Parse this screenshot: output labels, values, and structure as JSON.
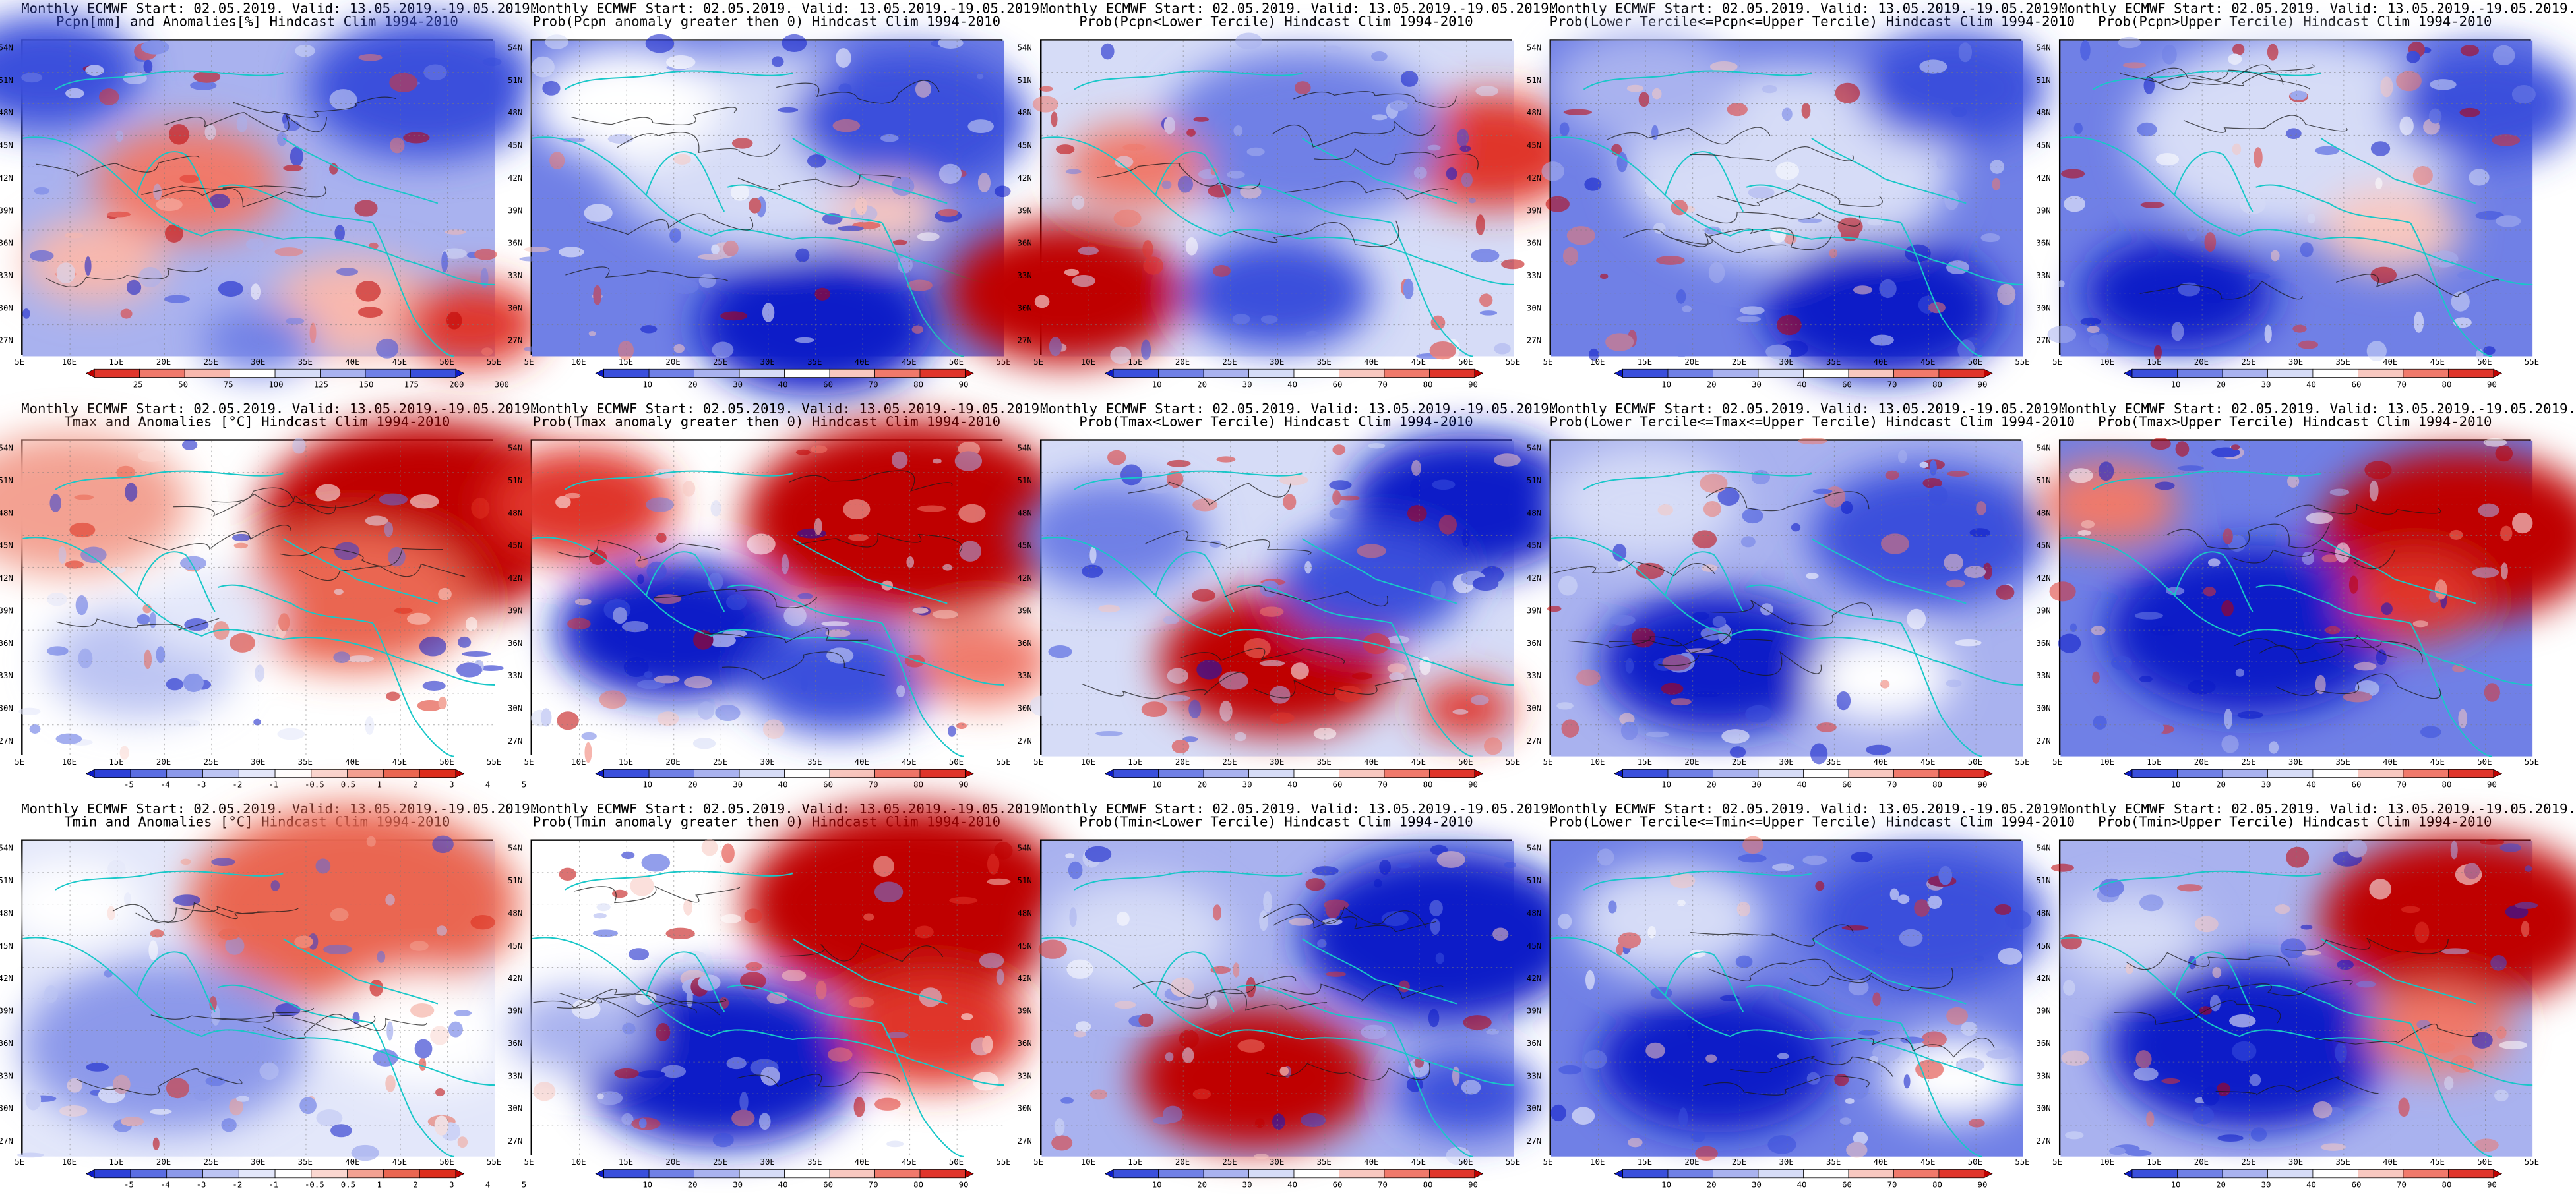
{
  "titles": [
    [
      "Monthly ECMWF Start: 02.05.2019. Valid: 13.05.2019.-19.05.2019.",
      "Pcpn[mm] and Anomalies[%] Hindcast Clim 1994-2010"
    ],
    [
      "Monthly ECMWF Start: 02.05.2019. Valid: 13.05.2019.-19.05.2019.",
      "Prob(Pcpn anomaly greater then 0) Hindcast Clim 1994-2010"
    ],
    [
      "Monthly ECMWF Start: 02.05.2019. Valid: 13.05.2019.-19.05.2019.",
      "Prob(Pcpn<Lower Tercile) Hindcast Clim 1994-2010"
    ],
    [
      "Monthly ECMWF Start: 02.05.2019. Valid: 13.05.2019.-19.05.2019.",
      "Prob(Lower Tercile<=Pcpn<=Upper Tercile) Hindcast Clim 1994-2010"
    ],
    [
      "Monthly ECMWF Start: 02.05.2019. Valid: 13.05.2019.-19.05.2019.",
      "Prob(Pcpn>Upper Tercile) Hindcast Clim 1994-2010"
    ],
    [
      "Monthly ECMWF Start: 02.05.2019. Valid: 13.05.2019.-19.05.2019.",
      "Tmax and Anomalies [°C] Hindcast Clim 1994-2010"
    ],
    [
      "Monthly ECMWF Start: 02.05.2019. Valid: 13.05.2019.-19.05.2019.",
      "Prob(Tmax anomaly greater then 0) Hindcast Clim 1994-2010"
    ],
    [
      "Monthly ECMWF Start: 02.05.2019. Valid: 13.05.2019.-19.05.2019.",
      "Prob(Tmax<Lower Tercile) Hindcast Clim 1994-2010"
    ],
    [
      "Monthly ECMWF Start: 02.05.2019. Valid: 13.05.2019.-19.05.2019.",
      "Prob(Lower Tercile<=Tmax<=Upper Tercile) Hindcast Clim 1994-2010"
    ],
    [
      "Monthly ECMWF Start: 02.05.2019. Valid: 13.05.2019.-19.05.2019.",
      "Prob(Tmax>Upper Tercile) Hindcast Clim 1994-2010"
    ],
    [
      "Monthly ECMWF Start: 02.05.2019. Valid: 13.05.2019.-19.05.2019.",
      "Tmin and Anomalies [°C] Hindcast Clim 1994-2010"
    ],
    [
      "Monthly ECMWF Start: 02.05.2019. Valid: 13.05.2019.-19.05.2019.",
      "Prob(Tmin anomaly greater then 0) Hindcast Clim 1994-2010"
    ],
    [
      "Monthly ECMWF Start: 02.05.2019. Valid: 13.05.2019.-19.05.2019.",
      "Prob(Tmin<Lower Tercile) Hindcast Clim 1994-2010"
    ],
    [
      "Monthly ECMWF Start: 02.05.2019. Valid: 13.05.2019.-19.05.2019.",
      "Prob(Lower Tercile<=Tmin<=Upper Tercile) Hindcast Clim 1994-2010"
    ],
    [
      "Monthly ECMWF Start: 02.05.2019. Valid: 13.05.2019.-19.05.2019.",
      "Prob(Tmin>Upper Tercile) Hindcast Clim 1994-2010"
    ]
  ],
  "lat_labels": [
    "54N",
    "51N",
    "48N",
    "45N",
    "42N",
    "39N",
    "36N",
    "33N",
    "30N",
    "27N"
  ],
  "lon_labels": [
    "5E",
    "10E",
    "15E",
    "20E",
    "25E",
    "30E",
    "35E",
    "40E",
    "45E",
    "50E",
    "55E"
  ],
  "colorbar_labels": {
    "pcpn": [
      "25",
      "50",
      "75",
      "100",
      "125",
      "150",
      "175",
      "200",
      "300"
    ],
    "prob": [
      "10",
      "20",
      "30",
      "40",
      "60",
      "70",
      "80",
      "90"
    ],
    "temp": [
      "-5",
      "-4",
      "-3",
      "-2",
      "-1",
      "-0.5",
      "0.5",
      "1",
      "2",
      "3",
      "4",
      "5"
    ]
  },
  "colors": {
    "pcpn": [
      "#bf0000",
      "#e0352b",
      "#f0796b",
      "#f8b8ae",
      "#ffffff",
      "#d6dcf7",
      "#a9b2ef",
      "#7080e6",
      "#3a4fdc",
      "#0b1ac8"
    ],
    "prob": [
      "#0b1ac8",
      "#3a4fdc",
      "#7080e6",
      "#a9b2ef",
      "#d6dcf7",
      "#ffffff",
      "#f8c8c0",
      "#f0796b",
      "#e0352b",
      "#bf0000"
    ],
    "temp": [
      "#0b1ac8",
      "#2c40d8",
      "#5a6de2",
      "#8c99ea",
      "#bcc4f3",
      "#e3e7fa",
      "#ffffff",
      "#fbd7d0",
      "#f3a192",
      "#ea6651",
      "#dd2d1c",
      "#bf0000"
    ],
    "coast": "#18c7c8",
    "contour": "#1a1a1a"
  },
  "panels": [
    {
      "name": "pcpn-anomaly",
      "palette": "pcpn",
      "base": 6,
      "blobs": [
        [
          0.35,
          0.45,
          0.2,
          2
        ],
        [
          0.7,
          0.85,
          0.18,
          3
        ],
        [
          0.95,
          0.9,
          0.15,
          1
        ],
        [
          0.15,
          0.7,
          0.15,
          3
        ],
        [
          0.05,
          0.1,
          0.2,
          8
        ],
        [
          0.85,
          0.15,
          0.25,
          8
        ],
        [
          0.5,
          0.95,
          0.12,
          7
        ]
      ]
    },
    {
      "name": "pcpn-prob-positive",
      "palette": "prob",
      "base": 2,
      "blobs": [
        [
          0.5,
          0.35,
          0.35,
          4
        ],
        [
          0.2,
          0.2,
          0.2,
          5
        ],
        [
          0.8,
          0.25,
          0.25,
          1
        ],
        [
          0.6,
          0.9,
          0.25,
          0
        ],
        [
          0.75,
          0.55,
          0.12,
          6
        ]
      ]
    },
    {
      "name": "pcpn-prob-lower",
      "palette": "prob",
      "base": 4,
      "blobs": [
        [
          0.05,
          0.8,
          0.25,
          9
        ],
        [
          0.95,
          0.35,
          0.2,
          8
        ],
        [
          0.55,
          0.3,
          0.3,
          2
        ],
        [
          0.5,
          0.8,
          0.2,
          1
        ],
        [
          0.2,
          0.4,
          0.15,
          7
        ]
      ]
    },
    {
      "name": "pcpn-prob-middle",
      "palette": "prob",
      "base": 2,
      "blobs": [
        [
          0.5,
          0.4,
          0.35,
          4
        ],
        [
          0.7,
          0.85,
          0.25,
          0
        ],
        [
          0.2,
          0.15,
          0.2,
          3
        ],
        [
          0.85,
          0.15,
          0.2,
          1
        ]
      ]
    },
    {
      "name": "pcpn-prob-upper",
      "palette": "prob",
      "base": 2,
      "blobs": [
        [
          0.5,
          0.3,
          0.35,
          4
        ],
        [
          0.25,
          0.8,
          0.2,
          0
        ],
        [
          0.7,
          0.6,
          0.15,
          6
        ],
        [
          0.9,
          0.2,
          0.2,
          1
        ]
      ]
    },
    {
      "name": "tmax-anomaly",
      "palette": "temp",
      "base": 6,
      "blobs": [
        [
          0.85,
          0.25,
          0.35,
          11
        ],
        [
          0.7,
          0.5,
          0.25,
          9
        ],
        [
          0.1,
          0.2,
          0.25,
          8
        ],
        [
          0.25,
          0.7,
          0.2,
          4
        ],
        [
          0.4,
          0.55,
          0.15,
          5
        ]
      ]
    },
    {
      "name": "tmax-prob-positive",
      "palette": "prob",
      "base": 5,
      "blobs": [
        [
          0.8,
          0.25,
          0.35,
          9
        ],
        [
          0.3,
          0.6,
          0.25,
          0
        ],
        [
          0.65,
          0.75,
          0.2,
          1
        ],
        [
          0.1,
          0.2,
          0.2,
          8
        ],
        [
          0.95,
          0.7,
          0.15,
          7
        ]
      ]
    },
    {
      "name": "tmax-prob-lower",
      "palette": "prob",
      "base": 4,
      "blobs": [
        [
          0.5,
          0.7,
          0.25,
          9
        ],
        [
          0.9,
          0.2,
          0.25,
          0
        ],
        [
          0.7,
          0.45,
          0.2,
          1
        ],
        [
          0.15,
          0.3,
          0.2,
          2
        ],
        [
          0.9,
          0.85,
          0.1,
          8
        ]
      ]
    },
    {
      "name": "tmax-prob-middle",
      "palette": "prob",
      "base": 3,
      "blobs": [
        [
          0.35,
          0.7,
          0.25,
          0
        ],
        [
          0.8,
          0.3,
          0.25,
          1
        ],
        [
          0.2,
          0.2,
          0.2,
          4
        ],
        [
          0.7,
          0.75,
          0.15,
          5
        ]
      ]
    },
    {
      "name": "tmax-prob-upper",
      "palette": "prob",
      "base": 2,
      "blobs": [
        [
          0.85,
          0.3,
          0.3,
          9
        ],
        [
          0.4,
          0.6,
          0.3,
          0
        ],
        [
          0.1,
          0.2,
          0.15,
          7
        ],
        [
          0.75,
          0.5,
          0.15,
          8
        ]
      ]
    },
    {
      "name": "tmin-anomaly",
      "palette": "temp",
      "base": 5,
      "blobs": [
        [
          0.7,
          0.2,
          0.35,
          9
        ],
        [
          0.3,
          0.65,
          0.3,
          3
        ],
        [
          0.85,
          0.6,
          0.2,
          6
        ],
        [
          0.1,
          0.2,
          0.15,
          6
        ]
      ]
    },
    {
      "name": "tmin-prob-positive",
      "palette": "prob",
      "base": 5,
      "blobs": [
        [
          0.8,
          0.2,
          0.35,
          9
        ],
        [
          0.4,
          0.7,
          0.3,
          0
        ],
        [
          0.85,
          0.6,
          0.2,
          8
        ],
        [
          0.1,
          0.6,
          0.15,
          3
        ]
      ]
    },
    {
      "name": "tmin-prob-lower",
      "palette": "prob",
      "base": 3,
      "blobs": [
        [
          0.45,
          0.75,
          0.25,
          9
        ],
        [
          0.85,
          0.3,
          0.3,
          0
        ],
        [
          0.2,
          0.3,
          0.2,
          4
        ],
        [
          0.9,
          0.8,
          0.15,
          1
        ]
      ]
    },
    {
      "name": "tmin-prob-middle",
      "palette": "prob",
      "base": 2,
      "blobs": [
        [
          0.35,
          0.7,
          0.25,
          0
        ],
        [
          0.8,
          0.25,
          0.25,
          1
        ],
        [
          0.25,
          0.25,
          0.2,
          4
        ],
        [
          0.85,
          0.75,
          0.15,
          5
        ]
      ]
    },
    {
      "name": "tmin-prob-upper",
      "palette": "prob",
      "base": 3,
      "blobs": [
        [
          0.85,
          0.25,
          0.3,
          9
        ],
        [
          0.4,
          0.65,
          0.3,
          0
        ],
        [
          0.15,
          0.3,
          0.15,
          4
        ],
        [
          0.8,
          0.6,
          0.15,
          7
        ]
      ]
    }
  ]
}
